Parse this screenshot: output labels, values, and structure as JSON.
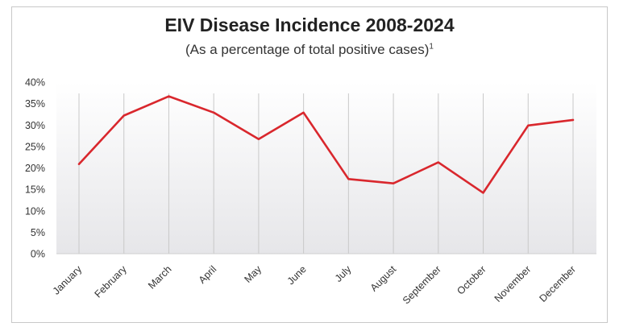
{
  "chart_data": {
    "type": "line",
    "title": "EIV Disease Incidence 2008-2024",
    "subtitle": "(As a percentage of total positive cases)",
    "subtitle_footnote": "1",
    "xlabel": "",
    "ylabel": "",
    "categories": [
      "January",
      "February",
      "March",
      "April",
      "May",
      "June",
      "July",
      "August",
      "September",
      "October",
      "November",
      "December"
    ],
    "series": [
      {
        "values": [
          20.9,
          32.2,
          36.7,
          32.9,
          26.7,
          32.9,
          17.4,
          16.4,
          21.3,
          14.2,
          29.9,
          31.2
        ]
      }
    ],
    "ylim": [
      0,
      40
    ],
    "yticks": [
      0,
      5,
      10,
      15,
      20,
      25,
      30,
      35,
      40
    ],
    "ytick_labels": [
      "0%",
      "5%",
      "10%",
      "15%",
      "20%",
      "25%",
      "30%",
      "35%",
      "40%"
    ],
    "grid": "vertical lines at categories",
    "legend": "none",
    "colors": {
      "line": "#d9272d",
      "gradient_top": "#ffffff",
      "gradient_bottom": "#e6e6e9",
      "gridline": "#c9c9c9"
    }
  }
}
